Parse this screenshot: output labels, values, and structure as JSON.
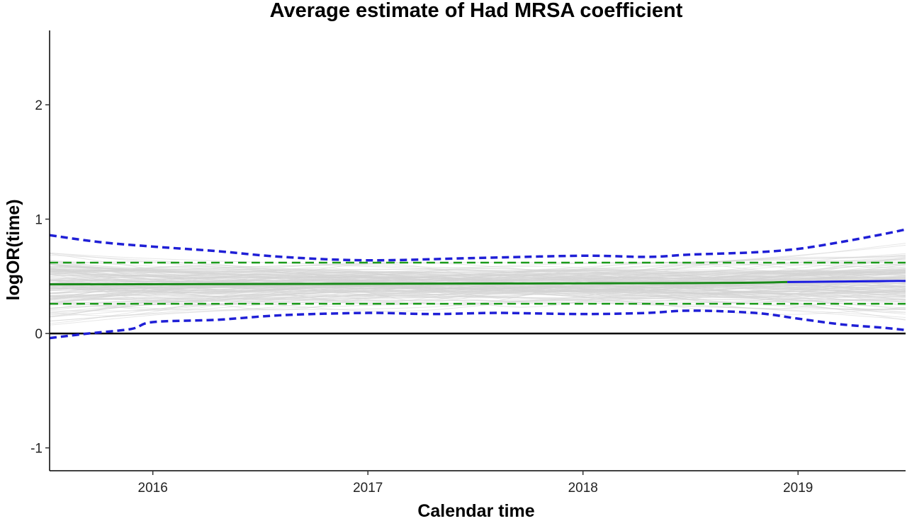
{
  "chart_data": {
    "type": "line",
    "title": "Average estimate of Had MRSA coefficient",
    "xlabel": "Calendar time",
    "ylabel": "logOR(time)",
    "xlim": [
      2015.52,
      2019.5
    ],
    "ylim": [
      -1.2,
      2.65
    ],
    "x_ticks": [
      2016,
      2017,
      2018,
      2019
    ],
    "y_ticks": [
      -1,
      0,
      1,
      2
    ],
    "grid": false,
    "legend": "none",
    "colors": {
      "background_curves": "#d3d3d3",
      "estimate": "#1a8a1a",
      "estimate_tail": "#1a1ae0",
      "estimate_ci": "#1a9a1a",
      "simulation_band": "#1f1fd6",
      "zero_line": "#000000"
    },
    "series": [
      {
        "role": "estimate",
        "style": "solid",
        "x": [
          2015.52,
          2018.37,
          2018.95,
          2019.5
        ],
        "y": [
          0.43,
          0.44,
          0.45,
          0.46
        ]
      },
      {
        "role": "estimate-ci-upper",
        "style": "dashed",
        "x": [
          2015.52,
          2019.5
        ],
        "y": [
          0.62,
          0.62
        ]
      },
      {
        "role": "estimate-ci-lower",
        "style": "dashed",
        "x": [
          2015.52,
          2019.5
        ],
        "y": [
          0.26,
          0.26
        ]
      },
      {
        "role": "band-upper",
        "style": "dashed",
        "x": [
          2015.52,
          2015.75,
          2016.0,
          2016.3,
          2016.6,
          2017.0,
          2017.5,
          2018.0,
          2018.3,
          2018.5,
          2018.8,
          2019.0,
          2019.2,
          2019.4,
          2019.5
        ],
        "y": [
          0.86,
          0.8,
          0.76,
          0.72,
          0.67,
          0.64,
          0.66,
          0.68,
          0.67,
          0.69,
          0.71,
          0.74,
          0.8,
          0.87,
          0.91
        ]
      },
      {
        "role": "band-lower",
        "style": "dashed",
        "x": [
          2015.52,
          2015.7,
          2015.9,
          2016.0,
          2016.3,
          2016.6,
          2017.0,
          2017.3,
          2017.6,
          2018.0,
          2018.3,
          2018.5,
          2018.8,
          2019.0,
          2019.2,
          2019.4,
          2019.5
        ],
        "y": [
          -0.04,
          0.0,
          0.04,
          0.1,
          0.12,
          0.16,
          0.18,
          0.17,
          0.18,
          0.17,
          0.18,
          0.2,
          0.18,
          0.13,
          0.08,
          0.05,
          0.03
        ]
      }
    ]
  }
}
